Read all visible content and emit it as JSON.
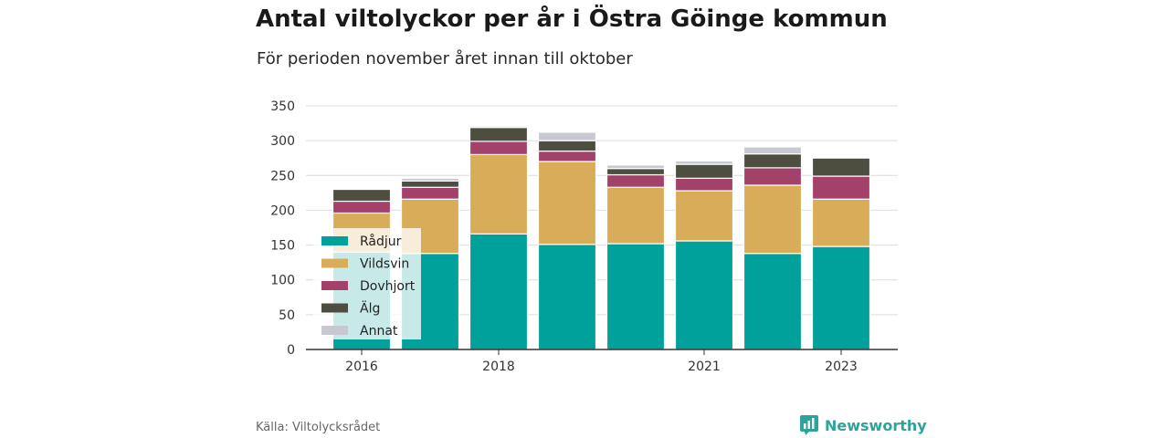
{
  "title": "Antal viltolyckor per år i Östra Göinge kommun",
  "subtitle": "För perioden november året innan till oktober",
  "source": "Källa: Viltolycksrådet",
  "brand": "Newsworthy",
  "colors": {
    "Rådjur": "#00a19a",
    "Vildsvin": "#d9ac59",
    "Dovhjort": "#a3416b",
    "Älg": "#4d4d40",
    "Annat": "#c8c8d2"
  },
  "chart_data": {
    "type": "bar",
    "stacked": true,
    "categories": [
      "2016",
      "2017",
      "2018",
      "2019",
      "2020",
      "2021",
      "2022",
      "2023"
    ],
    "x_tick_labels": [
      "2016",
      "",
      "2018",
      "",
      "",
      "2021",
      "",
      "2023"
    ],
    "y_ticks": [
      0,
      50,
      100,
      150,
      200,
      250,
      300,
      350
    ],
    "ylim": [
      0,
      350
    ],
    "grid": true,
    "legend_position": "inside-left",
    "series": [
      {
        "name": "Rådjur",
        "values": [
          140,
          138,
          166,
          151,
          152,
          156,
          138,
          148
        ]
      },
      {
        "name": "Vildsvin",
        "values": [
          56,
          78,
          114,
          119,
          81,
          72,
          98,
          68
        ]
      },
      {
        "name": "Dovhjort",
        "values": [
          17,
          17,
          19,
          15,
          18,
          18,
          25,
          33
        ]
      },
      {
        "name": "Älg",
        "values": [
          17,
          9,
          20,
          15,
          9,
          20,
          20,
          26
        ]
      },
      {
        "name": "Annat",
        "values": [
          0,
          4,
          2,
          12,
          5,
          5,
          10,
          0
        ]
      }
    ]
  }
}
